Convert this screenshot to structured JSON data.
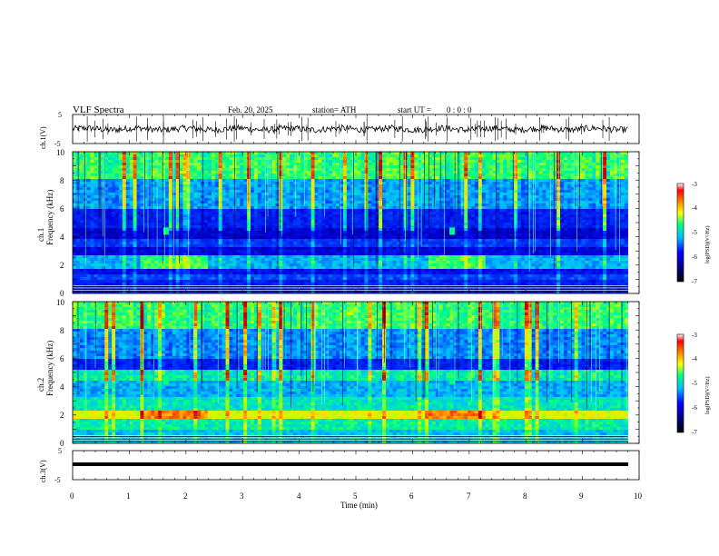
{
  "header": {
    "title": "VLF  Spectra",
    "date": "Feb. 20, 2025",
    "station": "station= ATH",
    "start_label": "start  UT  =",
    "start_time": "0  : 0   : 0"
  },
  "chart_data": [
    {
      "type": "line",
      "id": "ch1-waveform",
      "ylabel": "ch.1(V)",
      "ylim": [
        -5,
        5
      ],
      "yticks": [
        "5",
        "-5"
      ],
      "xlim": [
        0,
        10
      ],
      "data_end": 9.8,
      "series": [
        {
          "values_summary": "noisy trace near 0 V",
          "approx_level": 0
        }
      ]
    },
    {
      "type": "heatmap",
      "id": "ch1-spectrogram",
      "ylabel_channel": "ch.1",
      "ylabel": "Frequency  (kHz)",
      "ylim": [
        0,
        10
      ],
      "yticks": [
        "0",
        "2",
        "4",
        "6",
        "8",
        "10"
      ],
      "xlim": [
        0,
        10
      ],
      "data_end": 9.8,
      "colorbar": {
        "label": "log(PSD)(V²/Hz)",
        "ticks": [
          "-3",
          "-4",
          "-5",
          "-6",
          "-7"
        ],
        "range": [
          -7,
          -3
        ]
      },
      "features": {
        "band_1_2khz": true,
        "band_2_3khz": true,
        "band_4_4khz": true,
        "tone_events_min": [
          1.65,
          6.7
        ]
      }
    },
    {
      "type": "heatmap",
      "id": "ch2-spectrogram",
      "ylabel_channel": "ch.2",
      "ylabel": "Frequency  (kHz)",
      "ylim": [
        0,
        10
      ],
      "yticks": [
        "0",
        "2",
        "4",
        "6",
        "8",
        "10"
      ],
      "xlim": [
        0,
        10
      ],
      "data_end": 9.8,
      "colorbar": {
        "label": "log(PSD)(V²/Hz)",
        "ticks": [
          "-3",
          "-4",
          "-5",
          "-6",
          "-7"
        ],
        "range": [
          -7,
          -3
        ]
      },
      "features": {
        "strong_band_khz": 2.0,
        "band_4_6khz": true,
        "tone_events_min": [
          1.65,
          6.7
        ]
      }
    },
    {
      "type": "line",
      "id": "ch3-waveform",
      "ylabel": "ch.3(V)",
      "ylim": [
        -5,
        5
      ],
      "yticks": [
        "5",
        "-5"
      ],
      "xlim": [
        0,
        10
      ],
      "data_end": 9.8,
      "series": [
        {
          "values_summary": "flat thick trace",
          "approx_level": -1.9
        }
      ]
    }
  ],
  "x_axis": {
    "label": "Time  (min)",
    "ticks": [
      "0",
      "1",
      "2",
      "3",
      "4",
      "5",
      "6",
      "7",
      "8",
      "9",
      "10"
    ]
  },
  "colors": {
    "jet": [
      "#000080",
      "#0000ff",
      "#00bfff",
      "#00ff80",
      "#ffff00",
      "#ff8000",
      "#c00000"
    ]
  }
}
